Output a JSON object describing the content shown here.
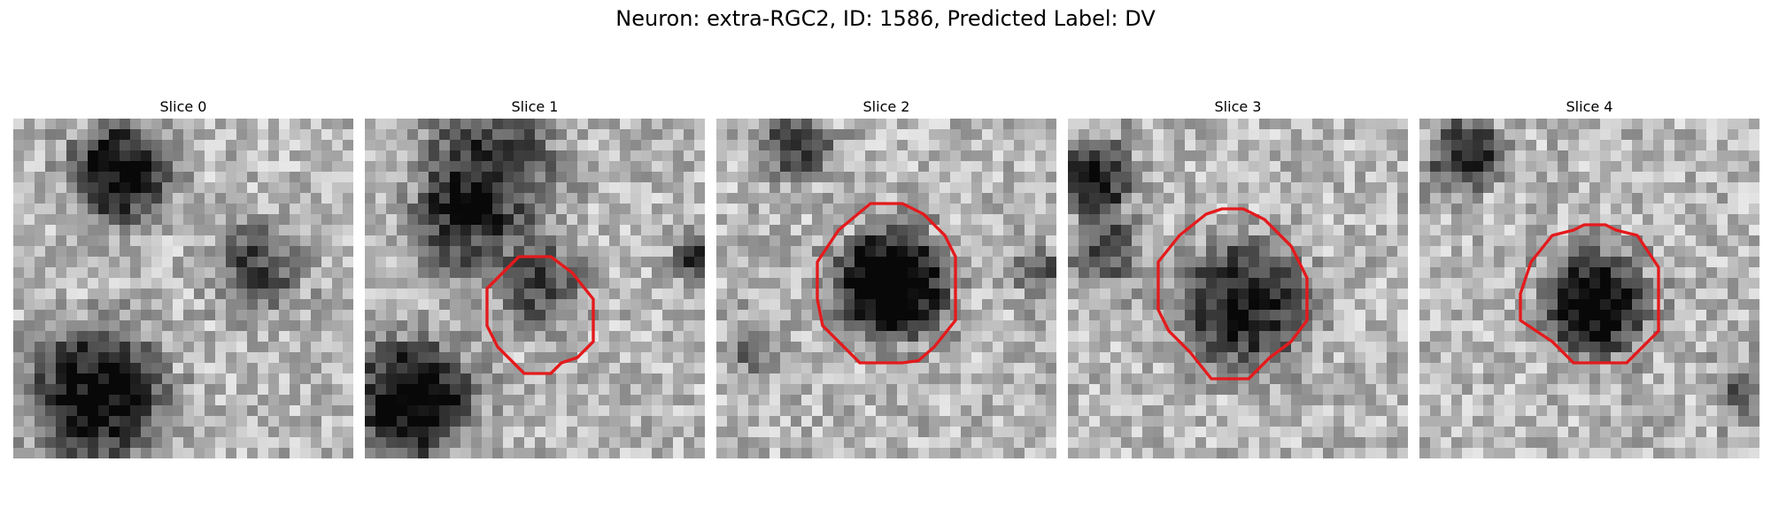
{
  "figure": {
    "title": "Neuron: extra-RGC2, ID: 1586, Predicted Label: DV",
    "outline_color": "#e41a1c"
  },
  "slices": [
    {
      "title": "Slice 0"
    },
    {
      "title": "Slice 1"
    },
    {
      "title": "Slice 2"
    },
    {
      "title": "Slice 3"
    },
    {
      "title": "Slice 4"
    }
  ]
}
